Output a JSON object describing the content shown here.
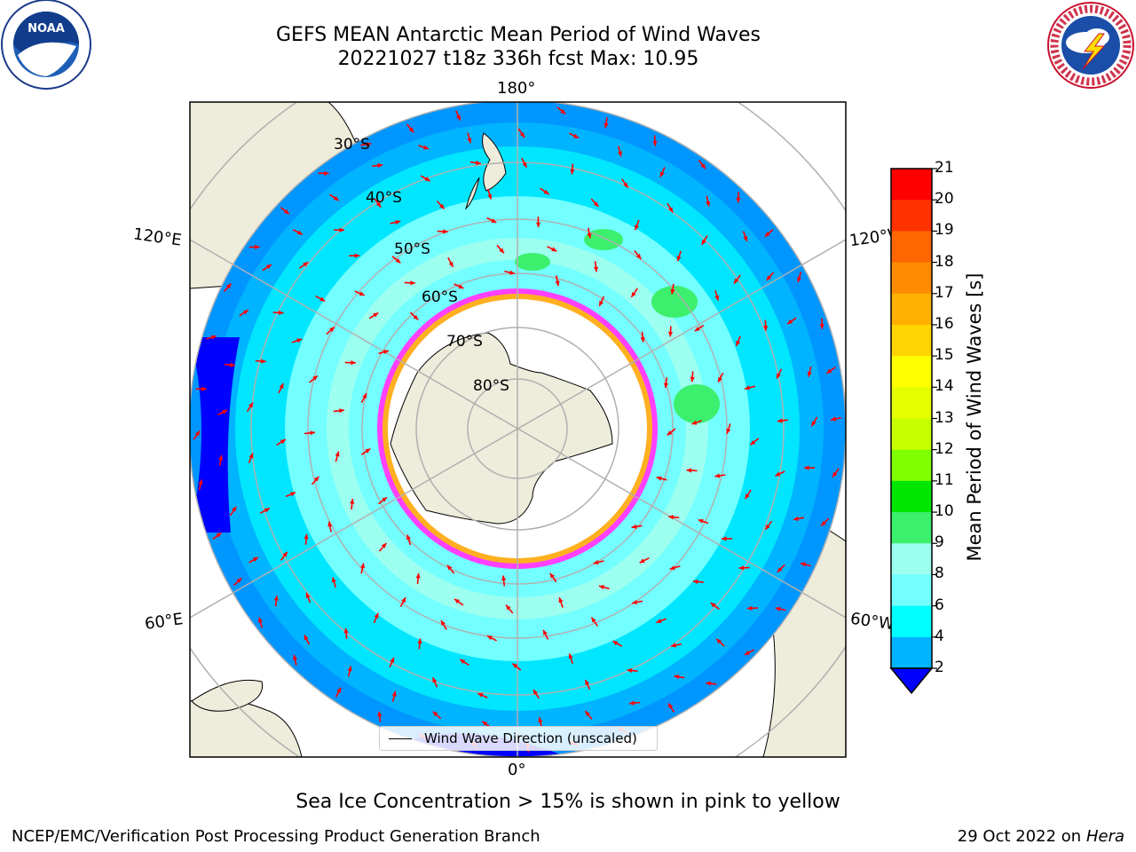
{
  "header": {
    "title_line1": "GEFS MEAN Antarctic Mean Period of Wind Waves",
    "title_line2": "20221027 t18z 336h fcst   Max: 10.95"
  },
  "logos": {
    "left": "NOAA",
    "right": "NATIONAL WEATHER SERVICE"
  },
  "map": {
    "projection": "south-polar-stereographic",
    "lon_labels": {
      "top": "180°",
      "bottom": "0°",
      "left_upper": "120°E",
      "left_lower": "60°E",
      "right_upper": "120°W",
      "right_lower": "60°W"
    },
    "lat_labels": [
      "30°S",
      "40°S",
      "50°S",
      "60°S",
      "70°S",
      "80°S"
    ],
    "land_color": "#eeecdb",
    "ice_color": "#ffffff",
    "ice_edge_colors": [
      "#ff40ff",
      "#ffb020"
    ]
  },
  "colorbar": {
    "label": "Mean Period of Wind Waves [s]",
    "ticks": [
      "21",
      "20",
      "19",
      "18",
      "17",
      "16",
      "15",
      "14",
      "13",
      "12",
      "11",
      "10",
      "9",
      "8",
      "6",
      "4",
      "2"
    ],
    "colors": [
      "#ff0000",
      "#ff3300",
      "#ff6600",
      "#ff8c00",
      "#ffb000",
      "#ffd400",
      "#ffff00",
      "#e6ff00",
      "#c8ff00",
      "#7fff00",
      "#00e600",
      "#3cf06e",
      "#9cfff0",
      "#73ffff",
      "#00ffff",
      "#00b4ff",
      "#0000ff"
    ],
    "under_color": "#0000ff"
  },
  "legend": {
    "label": "Wind Wave Direction (unscaled)"
  },
  "footer": {
    "note": "Sea Ice Concentration > 15% is shown in pink to yellow",
    "credit": "NCEP/EMC/Verification Post Processing Product Generation Branch",
    "date": "29 Oct 2022 on",
    "machine": "Hera"
  }
}
